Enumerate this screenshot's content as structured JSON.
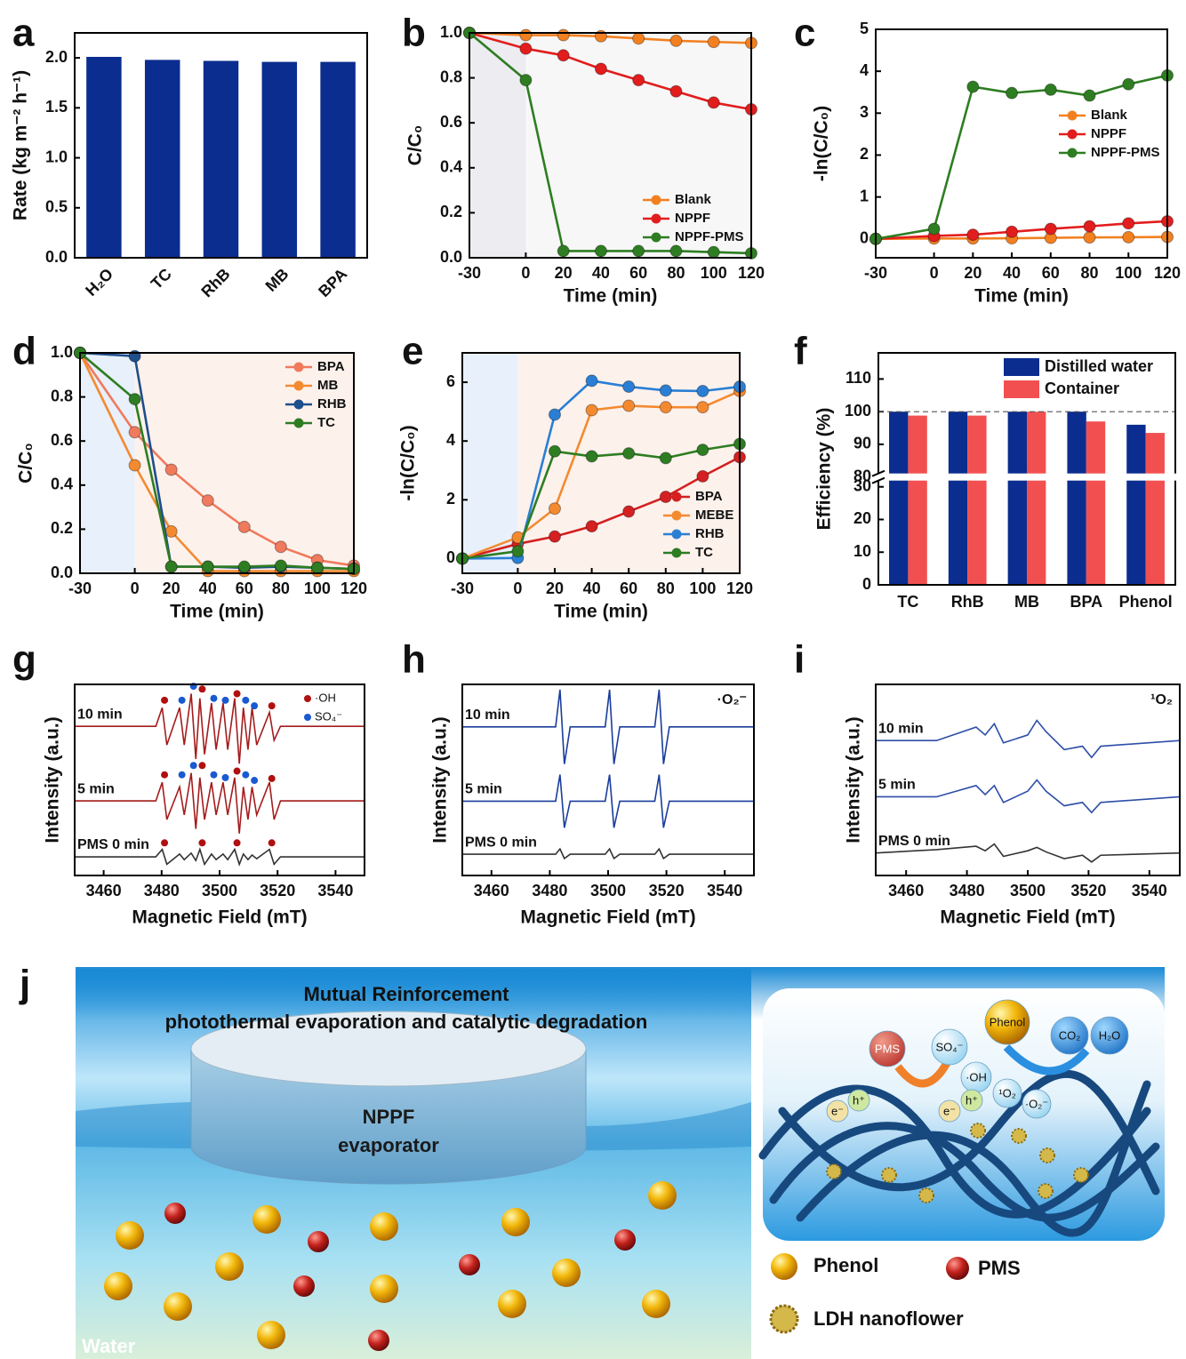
{
  "chart_data": [
    {
      "panel": "a",
      "type": "bar",
      "ylabel": "Rate (kg m⁻² h⁻¹)",
      "categories": [
        "H₂O",
        "TC",
        "RhB",
        "MB",
        "BPA"
      ],
      "values": [
        2.01,
        1.98,
        1.97,
        1.96,
        1.96
      ],
      "color": "#0b2d8f",
      "ylim": [
        0,
        2.25
      ],
      "yticks": [
        {
          "value": 0,
          "label": "0.0"
        },
        {
          "value": 0.5,
          "label": "0.5"
        },
        {
          "value": 1,
          "label": "1.0"
        },
        {
          "value": 1.5,
          "label": "1.5"
        },
        {
          "value": 2,
          "label": "2.0"
        }
      ]
    },
    {
      "panel": "b",
      "type": "line",
      "xlabel": "Time (min)",
      "ylabel": "C/C₀",
      "x": [
        -30,
        0,
        20,
        40,
        60,
        80,
        100,
        120
      ],
      "series": [
        {
          "name": "Blank",
          "color": "#f28020",
          "values": [
            1.0,
            0.99,
            0.99,
            0.985,
            0.975,
            0.965,
            0.96,
            0.955
          ]
        },
        {
          "name": "NPPF",
          "color": "#e21d1d",
          "values": [
            1.0,
            0.93,
            0.9,
            0.84,
            0.79,
            0.74,
            0.69,
            0.66
          ]
        },
        {
          "name": "NPPF-PMS",
          "color": "#2e7d22",
          "values": [
            1.0,
            0.79,
            0.03,
            0.03,
            0.03,
            0.03,
            0.025,
            0.02
          ]
        }
      ],
      "xlim": [
        -30,
        120
      ],
      "ylim": [
        0,
        1
      ],
      "xticks": [
        -30,
        0,
        20,
        40,
        60,
        80,
        100,
        120
      ],
      "yticks": [
        {
          "value": 0,
          "label": "0.0"
        },
        0.2,
        0.4,
        0.6,
        0.8,
        {
          "value": 1,
          "label": "1.0"
        }
      ],
      "legend": "lower right",
      "shade_colors": [
        "#ececf1",
        "#f7f7f7"
      ]
    },
    {
      "panel": "c",
      "type": "line",
      "xlabel": "Time (min)",
      "ylabel": "-ln(C/C₀)",
      "x": [
        -30,
        0,
        20,
        40,
        60,
        80,
        100,
        120
      ],
      "series": [
        {
          "name": "Blank",
          "color": "#f28020",
          "values": [
            0,
            0.01,
            0.01,
            0.015,
            0.025,
            0.035,
            0.04,
            0.046
          ]
        },
        {
          "name": "NPPF",
          "color": "#e21d1d",
          "values": [
            0,
            0.07,
            0.1,
            0.17,
            0.24,
            0.3,
            0.37,
            0.42
          ]
        },
        {
          "name": "NPPF-PMS",
          "color": "#2e7d22",
          "values": [
            0,
            0.24,
            3.63,
            3.48,
            3.56,
            3.42,
            3.69,
            3.9
          ]
        }
      ],
      "xlim": [
        -30,
        120
      ],
      "ylim": [
        -0.45,
        5
      ],
      "xticks": [
        -30,
        0,
        20,
        40,
        60,
        80,
        100,
        120
      ],
      "yticks": [
        0,
        1,
        2,
        3,
        4,
        5
      ],
      "legend": "center right"
    },
    {
      "panel": "d",
      "type": "line",
      "xlabel": "Time (min)",
      "ylabel": "C/C₀",
      "x": [
        -30,
        0,
        20,
        40,
        60,
        80,
        100,
        120
      ],
      "series": [
        {
          "name": "BPA",
          "color": "#f07a5c",
          "values": [
            1.0,
            0.64,
            0.47,
            0.33,
            0.21,
            0.12,
            0.06,
            0.035
          ]
        },
        {
          "name": "MB",
          "color": "#f48a30",
          "values": [
            1.0,
            0.49,
            0.19,
            0.01,
            0.01,
            0.01,
            0.01,
            0.01
          ]
        },
        {
          "name": "RHB",
          "color": "#1e4e8c",
          "values": [
            1.0,
            0.985,
            0.03,
            0.03,
            0.025,
            0.03,
            0.025,
            0.02
          ]
        },
        {
          "name": "TC",
          "color": "#2e7d22",
          "values": [
            1.0,
            0.79,
            0.03,
            0.03,
            0.03,
            0.035,
            0.025,
            0.02
          ]
        }
      ],
      "xlim": [
        -30,
        120
      ],
      "ylim": [
        0,
        1
      ],
      "xticks": [
        -30,
        0,
        20,
        40,
        60,
        80,
        100,
        120
      ],
      "yticks": [
        {
          "value": 0,
          "label": "0.0"
        },
        0.2,
        0.4,
        0.6,
        0.8,
        {
          "value": 1,
          "label": "1.0"
        }
      ],
      "legend": "upper right",
      "shade_colors": [
        "#e8f0fb",
        "#fdf1ec"
      ]
    },
    {
      "panel": "e",
      "type": "line",
      "xlabel": "Time (min)",
      "ylabel": "-ln(C/C₀)",
      "x": [
        -30,
        0,
        20,
        40,
        60,
        80,
        100,
        120
      ],
      "series": [
        {
          "name": "BPA",
          "color": "#d42020",
          "values": [
            0,
            0.5,
            0.75,
            1.1,
            1.6,
            2.1,
            2.8,
            3.45
          ]
        },
        {
          "name": "MEBE",
          "color": "#f48a30",
          "values": [
            0,
            0.72,
            1.7,
            5.05,
            5.2,
            5.15,
            5.15,
            5.7
          ]
        },
        {
          "name": "RHB",
          "color": "#2a7fd4",
          "values": [
            0,
            0.02,
            4.9,
            6.05,
            5.85,
            5.72,
            5.7,
            5.85
          ]
        },
        {
          "name": "TC",
          "color": "#2e7d22",
          "values": [
            0,
            0.25,
            3.65,
            3.48,
            3.58,
            3.42,
            3.7,
            3.9
          ]
        }
      ],
      "xlim": [
        -30,
        120
      ],
      "ylim": [
        -0.5,
        7
      ],
      "xticks": [
        -30,
        0,
        20,
        40,
        60,
        80,
        100,
        120
      ],
      "yticks": [
        0,
        2,
        4,
        6
      ],
      "legend": "lower right",
      "shade_colors": [
        "#e8f0fb",
        "#fdf1ec"
      ]
    },
    {
      "panel": "f",
      "type": "bar",
      "ylabel": "Efficiency (%)",
      "categories": [
        "TC",
        "RhB",
        "MB",
        "BPA",
        "Phenol"
      ],
      "series": [
        {
          "name": "Distilled water",
          "color": "#0b2d8f",
          "values": [
            100,
            100,
            100,
            100,
            96
          ]
        },
        {
          "name": "Container",
          "color": "#f25050",
          "values": [
            98.8,
            98.8,
            100,
            97,
            93.5
          ]
        }
      ],
      "ylim": [
        0,
        118
      ],
      "ybreak": [
        33,
        80
      ],
      "yticks": [
        0,
        10,
        20,
        30,
        80,
        90,
        100,
        110
      ],
      "ref_line": 100,
      "legend": "upper right"
    },
    {
      "panel": "g",
      "type": "spectrum",
      "xlabel": "Magnetic Field (mT)",
      "ylabel": "Intensity (a.u.)",
      "x": [
        3450,
        3478,
        3480.2,
        3481.8,
        3486.2,
        3487.8,
        3490.2,
        3491.8,
        3493.2,
        3494.8,
        3497.2,
        3498.8,
        3501.2,
        3502.8,
        3505.2,
        3506.8,
        3508.2,
        3509.8,
        3511.2,
        3512.8,
        3517.2,
        3518.8,
        3521,
        3550
      ],
      "series": [
        {
          "name": "10 min",
          "color": "#a51c1c",
          "values": [
            14,
            14,
            16,
            12,
            16,
            12,
            17.5,
            10.5,
            17,
            11,
            16.5,
            11.5,
            16.5,
            11.5,
            17,
            10,
            16,
            11.5,
            16,
            12,
            15.5,
            12.5,
            14,
            14
          ]
        },
        {
          "name": "5 min",
          "color": "#a51c1c",
          "values": [
            6,
            6,
            8,
            4,
            7.5,
            4.5,
            9,
            3,
            8.5,
            4,
            8,
            4.5,
            8,
            4.5,
            8.5,
            2.5,
            7.5,
            4,
            7.5,
            4.5,
            8,
            4,
            6,
            6
          ]
        },
        {
          "name": "PMS 0 min",
          "color": "#333333",
          "values": [
            0,
            0,
            0.8,
            -0.8,
            0.3,
            -0.3,
            0.4,
            -0.4,
            0.8,
            -0.8,
            0.3,
            -0.3,
            0.3,
            -0.3,
            0.8,
            -0.8,
            0.3,
            -0.3,
            0.2,
            -0.2,
            0.8,
            -0.8,
            0,
            0
          ]
        }
      ],
      "markers": [
        {
          "name": "·OH",
          "color": "#b01010",
          "x": [
            3481,
            3494,
            3506,
            3518,
            3481,
            3494,
            3506,
            3518,
            3481,
            3494,
            3506,
            3518
          ],
          "values": [
            16.8,
            18,
            17.5,
            16.2,
            8.8,
            9.8,
            9.2,
            8.4,
            1.5,
            1.5,
            1.5,
            1.5
          ]
        },
        {
          "name": "SO₄⁻",
          "color": "#1a5ad0",
          "x": [
            3487,
            3491,
            3498,
            3502,
            3509,
            3512,
            3487,
            3491,
            3498,
            3502,
            3509,
            3512
          ],
          "values": [
            16.8,
            18.3,
            17,
            16.8,
            16.8,
            16.2,
            8.8,
            9.8,
            8.8,
            8.5,
            8.8,
            8.2
          ]
        }
      ],
      "xlim": [
        3450,
        3550
      ],
      "ylim": [
        -2,
        18.5
      ],
      "xticks": [
        3460,
        3480,
        3500,
        3520,
        3540
      ],
      "legend": "upper right"
    },
    {
      "panel": "h",
      "type": "spectrum",
      "xlabel": "Magnetic Field (mT)",
      "ylabel": "Intensity (a.u.)",
      "annotation": "·O₂⁻",
      "x": [
        3450,
        3482,
        3483.5,
        3485,
        3487,
        3499,
        3500.5,
        3502,
        3504,
        3516,
        3517.5,
        3519,
        3521,
        3550
      ],
      "series": [
        {
          "name": "10 min",
          "color": "#1a3d9c",
          "values": [
            12,
            12,
            15.5,
            8.5,
            12,
            12,
            15.5,
            8.5,
            12,
            12,
            15.5,
            8.5,
            12,
            12
          ]
        },
        {
          "name": "5 min",
          "color": "#1a3d9c",
          "values": [
            5,
            5,
            7.5,
            2.5,
            5,
            5,
            7.5,
            2.5,
            5,
            5,
            7.5,
            2.5,
            5,
            5
          ]
        },
        {
          "name": "PMS 0 min",
          "color": "#333333",
          "values": [
            0,
            0,
            0.5,
            -0.4,
            0,
            0,
            0.5,
            -0.4,
            0,
            0,
            0.5,
            -0.4,
            0,
            0
          ]
        }
      ],
      "xlim": [
        3450,
        3550
      ],
      "ylim": [
        -2,
        16
      ],
      "xticks": [
        3460,
        3480,
        3500,
        3520,
        3540
      ]
    },
    {
      "panel": "i",
      "type": "spectrum",
      "xlabel": "Magnetic Field (mT)",
      "ylabel": "Intensity (a.u.)",
      "annotation": "¹O₂",
      "x": [
        3450,
        3470,
        3483,
        3486,
        3489,
        3492,
        3500,
        3503,
        3506,
        3512,
        3518,
        3521,
        3524,
        3550
      ],
      "series": [
        {
          "name": "10 min",
          "color": "#2e4ea8",
          "values": [
            10,
            10,
            11.2,
            10.5,
            11.5,
            9.8,
            10.5,
            11.8,
            10.8,
            9.2,
            9.5,
            8.5,
            9.5,
            10
          ]
        },
        {
          "name": "5 min",
          "color": "#2e4ea8",
          "values": [
            5,
            5,
            6,
            5.2,
            6,
            4.5,
            5.5,
            6.5,
            5.5,
            4.2,
            4.5,
            3.6,
            4.5,
            5
          ]
        },
        {
          "name": "PMS 0 min",
          "color": "#333333",
          "values": [
            0,
            0.3,
            0.6,
            0.2,
            0.8,
            -0.3,
            0.2,
            0.5,
            0.1,
            -0.5,
            -0.2,
            -0.8,
            -0.2,
            0
          ]
        }
      ],
      "xlim": [
        3450,
        3550
      ],
      "ylim": [
        -2,
        15
      ],
      "xticks": [
        3460,
        3480,
        3500,
        3520,
        3540
      ]
    }
  ],
  "diagram": {
    "panel": "j",
    "title": [
      "Mutual Reinforcement",
      "photothermal evaporation and catalytic degradation"
    ],
    "evaporator": [
      "NPPF",
      "evaporator"
    ],
    "water": "Water",
    "species": [
      "PMS",
      "SO₄⁻",
      "·OH",
      "Phenol",
      "CO₂",
      "H₂O",
      "e⁻",
      "h⁺",
      "e⁻",
      "h⁺",
      "¹O₂",
      "·O₂⁻"
    ],
    "legend": [
      "Phenol",
      "PMS",
      "LDH nanoflower"
    ]
  }
}
